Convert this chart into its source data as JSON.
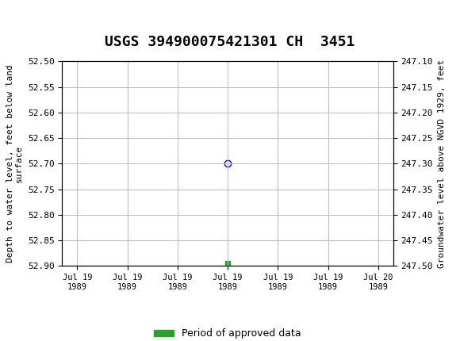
{
  "title": "USGS 394900075421301 CH  3451",
  "title_fontsize": 13,
  "background_color": "#ffffff",
  "plot_bg_color": "#ffffff",
  "header_color": "#1a6b3c",
  "grid_color": "#c0c0c0",
  "left_ylabel": "Depth to water level, feet below land\nsurface",
  "right_ylabel": "Groundwater level above NGVD 1929, feet",
  "ylim_left": [
    52.5,
    52.9
  ],
  "ylim_right": [
    247.1,
    247.5
  ],
  "yticks_left": [
    52.5,
    52.55,
    52.6,
    52.65,
    52.7,
    52.75,
    52.8,
    52.85,
    52.9
  ],
  "yticks_right": [
    247.5,
    247.45,
    247.4,
    247.35,
    247.3,
    247.25,
    247.2,
    247.15,
    247.1
  ],
  "data_point_depth": 52.7,
  "data_point_color": "#0000cc",
  "marker_style": "o",
  "marker_size": 6,
  "green_bar_depth": 52.895,
  "green_bar_color": "#2ca02c",
  "legend_label": "Period of approved data",
  "xlabel_dates": [
    "Jul 19\n1989",
    "Jul 19\n1989",
    "Jul 19\n1989",
    "Jul 19\n1989",
    "Jul 19\n1989",
    "Jul 19\n1989",
    "Jul 20\n1989"
  ]
}
